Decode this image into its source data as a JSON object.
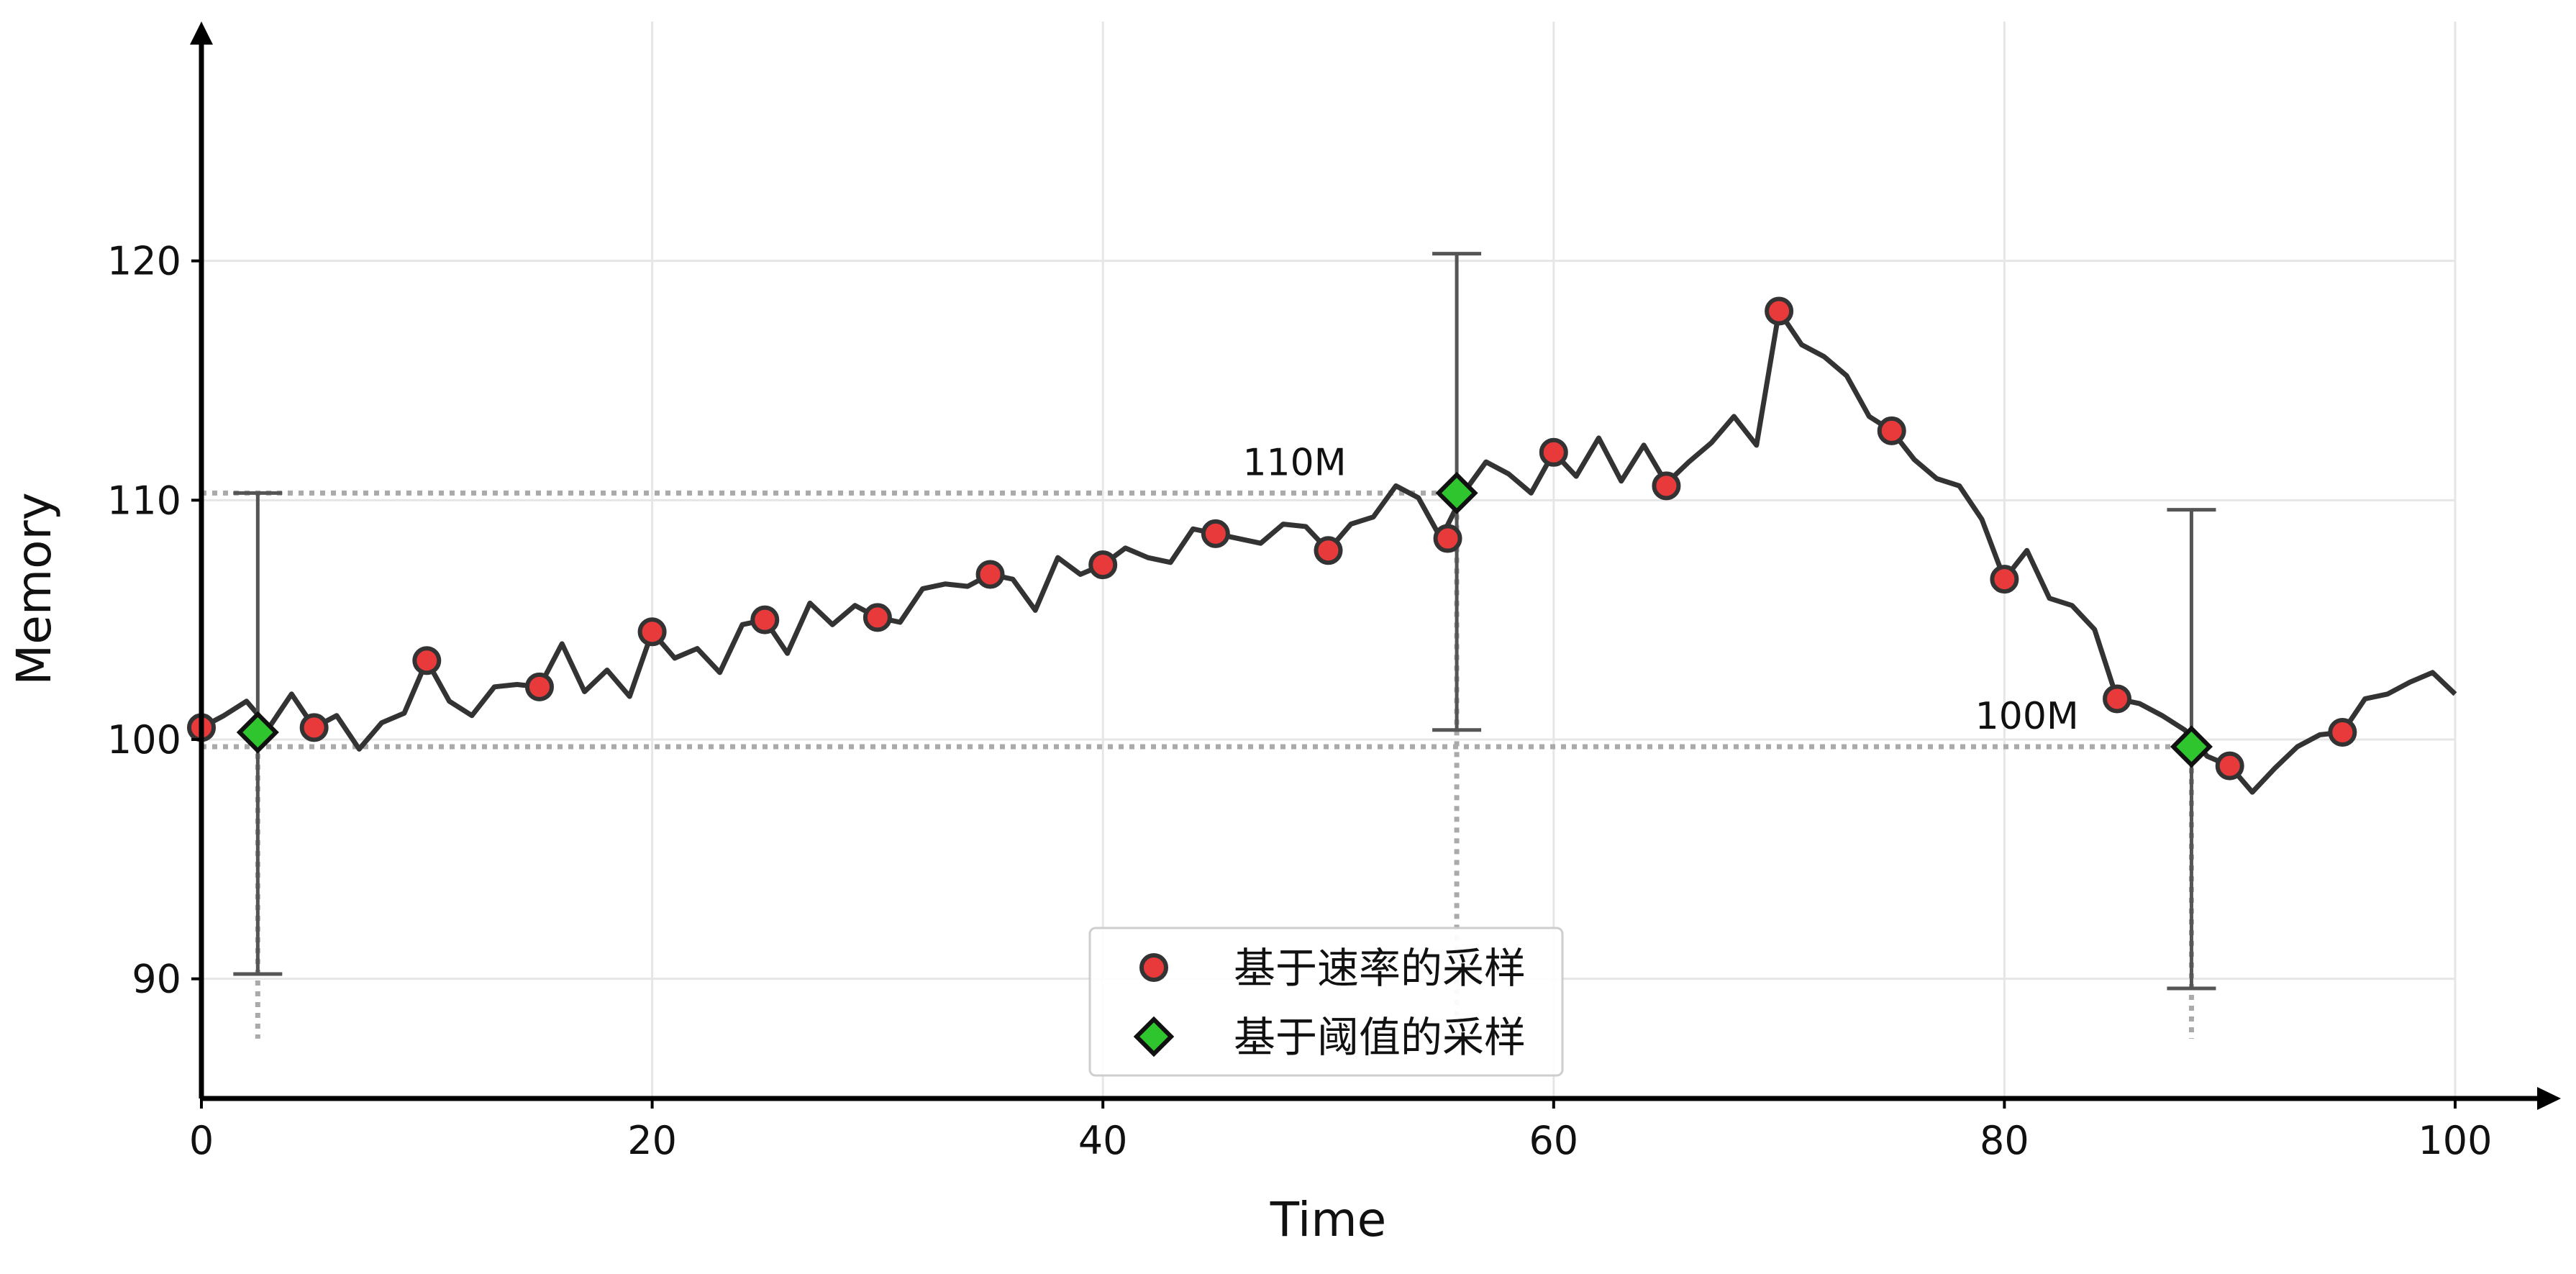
{
  "chart_data": {
    "type": "line",
    "title": "",
    "xlabel": "Time",
    "ylabel": "Memory",
    "xlim": [
      0,
      100
    ],
    "ylim": [
      85,
      130
    ],
    "x_ticks": [
      0,
      20,
      40,
      60,
      80,
      100
    ],
    "y_ticks": [
      90,
      100,
      110,
      120
    ],
    "grid": true,
    "legend_position": "bottom-center",
    "colors": {
      "line": "#333333",
      "rate_marker": "#e83a3a",
      "threshold_marker": "#2ec52e",
      "guide": "#aaaaaa",
      "grid": "#e6e6e6"
    },
    "series": [
      {
        "x": [
          0,
          1,
          2,
          3,
          4,
          5,
          6,
          7,
          8,
          9,
          10,
          11,
          12,
          13,
          14,
          15,
          16,
          17,
          18,
          19,
          20,
          21,
          22,
          23,
          24,
          25,
          26,
          27,
          28,
          29,
          30,
          31,
          32,
          33,
          34,
          35,
          36,
          37,
          38,
          39,
          40,
          41,
          42,
          43,
          44,
          45,
          46,
          47,
          48,
          49,
          50,
          51,
          52,
          53,
          54,
          55,
          56,
          57,
          58,
          59,
          60,
          61,
          62,
          63,
          64,
          65,
          66,
          67,
          68,
          69,
          70,
          71,
          72,
          73,
          74,
          75,
          76,
          77,
          78,
          79,
          80,
          81,
          82,
          83,
          84,
          85,
          86,
          87,
          88,
          89,
          90,
          91,
          92,
          93,
          94,
          95,
          96,
          97,
          98,
          99,
          100
        ],
        "y": [
          100.5,
          101.0,
          101.6,
          100.5,
          101.9,
          100.5,
          101.0,
          99.6,
          100.7,
          101.1,
          103.3,
          101.6,
          101.0,
          102.2,
          102.3,
          102.2,
          104.0,
          102.0,
          102.9,
          101.8,
          104.5,
          103.4,
          103.8,
          102.8,
          104.8,
          105.0,
          103.6,
          105.7,
          104.8,
          105.6,
          105.1,
          104.9,
          106.3,
          106.5,
          106.4,
          106.9,
          106.7,
          105.4,
          107.6,
          106.9,
          107.3,
          108.0,
          107.6,
          107.4,
          108.8,
          108.6,
          108.4,
          108.2,
          109.0,
          108.9,
          107.9,
          109.0,
          109.3,
          110.6,
          110.1,
          108.4,
          110.3,
          111.6,
          111.1,
          110.3,
          112.0,
          111.0,
          112.6,
          110.8,
          112.3,
          110.7,
          111.6,
          112.4,
          113.5,
          112.3,
          117.9,
          116.5,
          116.0,
          115.2,
          113.5,
          112.9,
          111.7,
          110.9,
          110.6,
          109.2,
          106.7,
          107.9,
          105.9,
          105.6,
          104.6,
          101.7,
          101.5,
          101.0,
          100.4,
          99.3,
          98.9,
          97.8,
          98.8,
          99.7,
          100.2,
          100.3,
          101.7,
          101.9,
          102.4,
          102.8,
          101.9
        ]
      }
    ],
    "rate_samples": {
      "name": "基于速率的采样",
      "x": [
        0,
        5,
        10,
        15,
        20,
        25,
        30,
        35,
        40,
        45,
        50,
        55.3,
        60,
        65,
        70,
        75,
        80,
        85,
        90,
        95
      ],
      "y": [
        100.5,
        100.5,
        103.3,
        102.2,
        104.5,
        105.0,
        105.1,
        106.9,
        107.3,
        108.6,
        107.9,
        108.4,
        112.0,
        110.6,
        117.9,
        112.9,
        106.7,
        101.7,
        98.9,
        100.3
      ]
    },
    "threshold_samples": {
      "name": "基于阈值的采样",
      "points": [
        {
          "x": 2.5,
          "y": 100.3,
          "err_low": 90.2,
          "err_high": 110.3
        },
        {
          "x": 55.7,
          "y": 110.3,
          "err_low": 100.4,
          "err_high": 120.3
        },
        {
          "x": 88.3,
          "y": 99.7,
          "err_low": 89.6,
          "err_high": 109.6
        }
      ]
    },
    "reference_lines": [
      {
        "y": 110.3,
        "x_start": 0,
        "x_end": 55.7,
        "label": "110M",
        "label_x": 48.5
      },
      {
        "y": 99.7,
        "x_start": 0,
        "x_end": 88.3,
        "label": "100M",
        "label_x": 81
      }
    ],
    "drop_lines": [
      {
        "x": 2.5,
        "y_start": 100.3,
        "y_end": 87.5
      },
      {
        "x": 55.7,
        "y_start": 110.3,
        "y_end": 87.5
      },
      {
        "x": 88.3,
        "y_start": 99.7,
        "y_end": 87.5
      }
    ]
  }
}
